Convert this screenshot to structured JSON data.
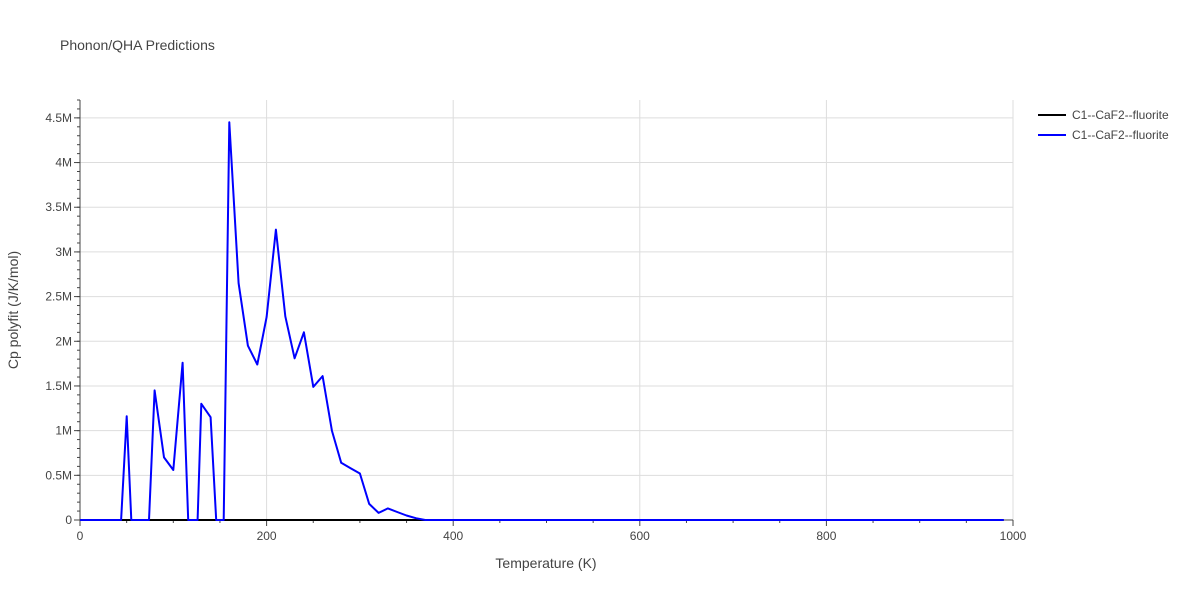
{
  "chart_data": {
    "type": "line",
    "title": "Phonon/QHA Predictions",
    "xlabel": "Temperature (K)",
    "ylabel": "Cp polyfit (J/K/mol)",
    "xlim": [
      0,
      1000
    ],
    "ylim": [
      0,
      4700000
    ],
    "grid": true,
    "legend_position": "top-right",
    "x_ticks": [
      {
        "value": 0,
        "label": "0"
      },
      {
        "value": 200,
        "label": "200"
      },
      {
        "value": 400,
        "label": "400"
      },
      {
        "value": 600,
        "label": "600"
      },
      {
        "value": 800,
        "label": "800"
      },
      {
        "value": 1000,
        "label": "1000"
      }
    ],
    "y_ticks": [
      {
        "value": 0,
        "label": "0"
      },
      {
        "value": 500000,
        "label": "0.5M"
      },
      {
        "value": 1000000,
        "label": "1M"
      },
      {
        "value": 1500000,
        "label": "1.5M"
      },
      {
        "value": 2000000,
        "label": "2M"
      },
      {
        "value": 2500000,
        "label": "2.5M"
      },
      {
        "value": 3000000,
        "label": "3M"
      },
      {
        "value": 3500000,
        "label": "3.5M"
      },
      {
        "value": 4000000,
        "label": "4M"
      },
      {
        "value": 4500000,
        "label": "4.5M"
      }
    ],
    "series": [
      {
        "name": "C1--CaF2--fluorite",
        "color": "#000000",
        "x": [
          0,
          990
        ],
        "y": [
          0,
          0
        ]
      },
      {
        "name": "C1--CaF2--fluorite",
        "color": "#0000ff",
        "x": [
          0,
          44,
          50,
          55,
          74,
          80,
          90,
          100,
          110,
          116,
          126,
          130,
          140,
          146,
          154,
          160,
          170,
          180,
          190,
          200,
          210,
          220,
          230,
          240,
          250,
          260,
          270,
          280,
          290,
          300,
          310,
          320,
          330,
          340,
          350,
          360,
          370,
          380,
          990
        ],
        "y": [
          0,
          0,
          1160000,
          0,
          0,
          1450000,
          700000,
          560000,
          1760000,
          0,
          0,
          1300000,
          1150000,
          0,
          0,
          4450000,
          2650000,
          1950000,
          1740000,
          2270000,
          3250000,
          2280000,
          1810000,
          2100000,
          1490000,
          1610000,
          1000000,
          640000,
          580000,
          520000,
          180000,
          80000,
          130000,
          90000,
          50000,
          20000,
          0,
          0,
          0
        ]
      }
    ]
  }
}
